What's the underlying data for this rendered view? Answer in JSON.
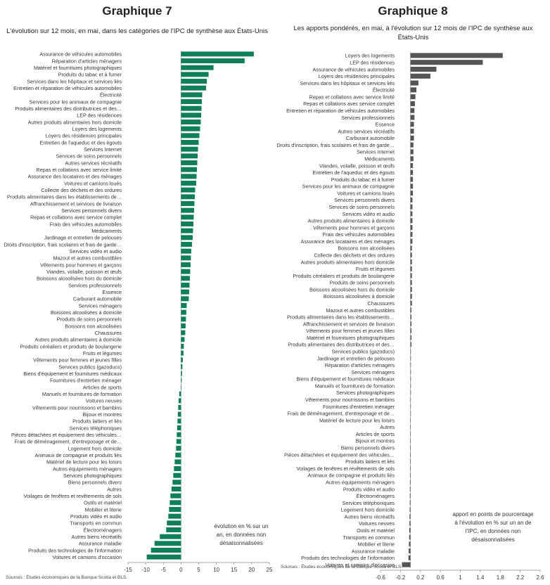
{
  "chart_data": [
    {
      "type": "bar",
      "orientation": "horizontal",
      "title": "Graphique 7",
      "subtitle": "L'évolution sur 12 mois, en mai, dans les catégories de l'IPC de synthèse aux États-Unis",
      "note": [
        "évolution en % sur un",
        "an, en données non",
        "désaisonnalisées"
      ],
      "source": "Sources : Études économiques de la Banque Scotia et BLS.",
      "color": "#0f7f5a",
      "xlim": [
        -15,
        25
      ],
      "xticks": [
        -15,
        -10,
        -5,
        0,
        5,
        10,
        15,
        20,
        25
      ],
      "grid": false,
      "categories": [
        "Assurance de véhicules automobiles",
        "Réparation d'articles ménagers",
        "Matériel et fournitures photographiques",
        "Produits du tabac et à fumer",
        "Services dans les hôpitaux et services liés",
        "Entretien et réparation de véhicules automobiles",
        "Électricité",
        "Services pour les animaux de compagnie",
        "Produits alimentaires des distributrices et des…",
        "LEP des résidences",
        "Autres produits alimentaires hors domicile",
        "Loyers des logements",
        "Loyers des résidences principales",
        "Entretien de l'aqueduc et des égouts",
        "Services Internet",
        "Services de soins personnels",
        "Autres services récréatifs",
        "Repas et collations avec service limité",
        "Assurance des locataires et des ménages",
        "Voitures et camions loués",
        "Collecte des déchets et des ordures",
        "Produits alimentaires dans les établissements de…",
        "Affranchissement et services de livraison",
        "Services personnels divers",
        "Repas et collations avec service complet",
        "Frais des véhicules automobiles",
        "Médicaments",
        "Jardinage et entretien de pelouses",
        "Droits d'inscription, frais scolaires et frais de garde…",
        "Services vidéo et audio",
        "Mazout et autres combustibles",
        "Vêtements pour hommes et garçons",
        "Viandes, volaille, poisson et œufs",
        "Boissons alcoolisées hors du domicile",
        "Services professionnels",
        "Essence",
        "Carburant automobile",
        "Services ménagers",
        "Boissons alcoolisées à domicile",
        "Produits de soins personnels",
        "Boissons non alcoolisées",
        "Chaussures",
        "Autres produits alimentaires à domicile",
        "Produits céréaliers et produits de boulangerie",
        "Fruits et légumes",
        "Vêtements pour femmes et jeunes filles",
        "Services publics (gazoducs)",
        "Biens d'équipement et fournitures médicaux",
        "Fournitures d'entretien ménager",
        "Articles de sports",
        "Manuels et fournitures de formation",
        "Voitures neuves",
        "Vêtements pour nourrissons et bambins",
        "Bijoux et montres",
        "Produits laitiers et liés",
        "Services téléphoniques",
        "Pièces détachées et équipement des véhicules…",
        "Frais de déménagement, d'entreposage et de…",
        "Logement hors domicile",
        "Animaux de compagnie et produits liés",
        "Matériel de lecture pour les loisirs",
        "Autres équipements ménagers",
        "Services photographiques",
        "Biens personnels divers",
        "Autres",
        "Voilages de fenêtres et revêtements de sols",
        "Outils et matériel",
        "Mobilier et literie",
        "Produits vidéo et audio",
        "Transports en commun",
        "Électroménagers",
        "Autres biens récréatifs",
        "Assurance maladie",
        "Produits des technologies de l'information",
        "Voitures et camions d'occasion"
      ],
      "values": [
        20.6,
        18.0,
        9.2,
        7.8,
        7.3,
        7.1,
        6.0,
        5.9,
        5.8,
        5.7,
        5.6,
        5.4,
        5.2,
        5.0,
        4.8,
        4.7,
        4.6,
        4.5,
        4.4,
        4.3,
        4.0,
        3.9,
        3.8,
        3.7,
        3.6,
        3.5,
        3.4,
        3.3,
        3.1,
        2.9,
        2.8,
        2.7,
        2.6,
        2.5,
        2.4,
        2.3,
        2.2,
        1.6,
        1.5,
        1.4,
        1.3,
        1.2,
        1.0,
        0.8,
        0.7,
        0.5,
        0.4,
        0.3,
        0.2,
        0.1,
        -0.5,
        -0.7,
        -0.8,
        -0.9,
        -1.0,
        -1.1,
        -1.2,
        -1.3,
        -1.4,
        -1.6,
        -1.8,
        -2.0,
        -2.2,
        -2.4,
        -2.7,
        -3.0,
        -3.2,
        -3.4,
        -3.6,
        -4.0,
        -4.2,
        -6.0,
        -7.5,
        -8.5,
        -9.7
      ]
    },
    {
      "type": "bar",
      "orientation": "horizontal",
      "title": "Graphique 8",
      "subtitle": "Les apports pondérés, en mai, à l'évolution sur 12 mois de l'IPC de synthèse aux États-Unis",
      "note": [
        "apport en points de pourcentage",
        "à l'évolution en % sur un an de",
        "l'IPC, en données non",
        "désaisonnalisées"
      ],
      "source": "Sources : Études économiques de la Banque Scotia et BLS.",
      "color": "#555555",
      "xlim": [
        -0.6,
        2.6
      ],
      "xticks": [
        -0.6,
        -0.2,
        0.2,
        0.6,
        1.0,
        1.4,
        1.8,
        2.2,
        2.6
      ],
      "grid": false,
      "categories": [
        "Loyers des logements",
        "LEP des résidences",
        "Assurance de véhicules automobiles",
        "Loyers des résidences principales",
        "Services dans les hôpitaux et services liés",
        "Électricité",
        "Repas et collations avec service limité",
        "Repas et collations avec service complet",
        "Entretien et réparation de véhicules automobiles",
        "Services professionnels",
        "Essence",
        "Autres services récréatifs",
        "Carburant automobile",
        "Droits d'inscription, frais scolaires et frais de garde…",
        "Services Internet",
        "Médicaments",
        "Viandes, volaille, poisson et œufs",
        "Entretien de l'aqueduc et des égouts",
        "Produits du tabac et à fumer",
        "Services pour les animaux de compagnie",
        "Voitures et camions loués",
        "Services personnels divers",
        "Services de soins personnels",
        "Services vidéo et audio",
        "Autres produits alimentaires à domicile",
        "Vêtements pour hommes et garçons",
        "Frais des véhicules automobiles",
        "Assurance des locataires et des ménages",
        "Boissons non alcoolisées",
        "Collecte des déchets et des ordures",
        "Autres produits alimentaires hors domicile",
        "Fruits et légumes",
        "Produits céréaliers et produits de boulangerie",
        "Produits de soins personnels",
        "Boissons alcoolisées hors du domicile",
        "Boissons alcoolisées à domicile",
        "Chaussures",
        "Mazout et autres combustibles",
        "Produits alimentaires dans les établissements…",
        "Affranchissement et services de livraison",
        "Vêtements pour femmes et jeunes filles",
        "Matériel et fournitures photographiques",
        "Produits alimentaires des distributrices et des…",
        "Services publics (gazoducs)",
        "Jardinage et entretien de pelouses",
        "Réparation d'articles ménagers",
        "Services ménagers",
        "Biens d'équipement et fournitures médicaux",
        "Manuels et fournitures de formation",
        "Services photographiques",
        "Vêtements pour nourrissons et bambins",
        "Fournitures d'entretien ménager",
        "Frais de déménagement, d'entreposage et de…",
        "Matériel de lecture pour les loisirs",
        "Autres",
        "Articles de sports",
        "Bijoux et montres",
        "Biens personnels divers",
        "Pièces détachées et équipement des véhicules…",
        "Produits laitiers et liés",
        "Voilages de fenêtres et revêtements de sols",
        "Animaux de compagnie et produits liés",
        "Autres équipements ménagers",
        "Produits vidéo et audio",
        "Électroménagers",
        "Services téléphoniques",
        "Logement hors domicile",
        "Autres biens récréatifs",
        "Voitures neuves",
        "Outils et matériel",
        "Transports en commun",
        "Mobilier et literie",
        "Assurance maladie",
        "Produits des technologies de l'information",
        "Voitures et camions d'occasion"
      ],
      "values": [
        1.85,
        1.45,
        0.52,
        0.4,
        0.16,
        0.12,
        0.1,
        0.09,
        0.08,
        0.08,
        0.07,
        0.07,
        0.07,
        0.06,
        0.06,
        0.06,
        0.05,
        0.05,
        0.05,
        0.05,
        0.05,
        0.04,
        0.04,
        0.04,
        0.04,
        0.04,
        0.04,
        0.04,
        0.03,
        0.03,
        0.03,
        0.03,
        0.03,
        0.03,
        0.03,
        0.03,
        0.03,
        0.02,
        0.02,
        0.02,
        0.02,
        0.02,
        0.02,
        0.01,
        0.01,
        0.01,
        0.01,
        0.01,
        0.01,
        0.01,
        0.005,
        0.003,
        0.002,
        -0.002,
        -0.003,
        -0.005,
        -0.005,
        -0.006,
        -0.007,
        -0.008,
        -0.008,
        -0.009,
        -0.01,
        -0.011,
        -0.012,
        -0.013,
        -0.015,
        -0.018,
        -0.02,
        -0.022,
        -0.025,
        -0.03,
        -0.035,
        -0.04,
        -0.17
      ]
    }
  ]
}
